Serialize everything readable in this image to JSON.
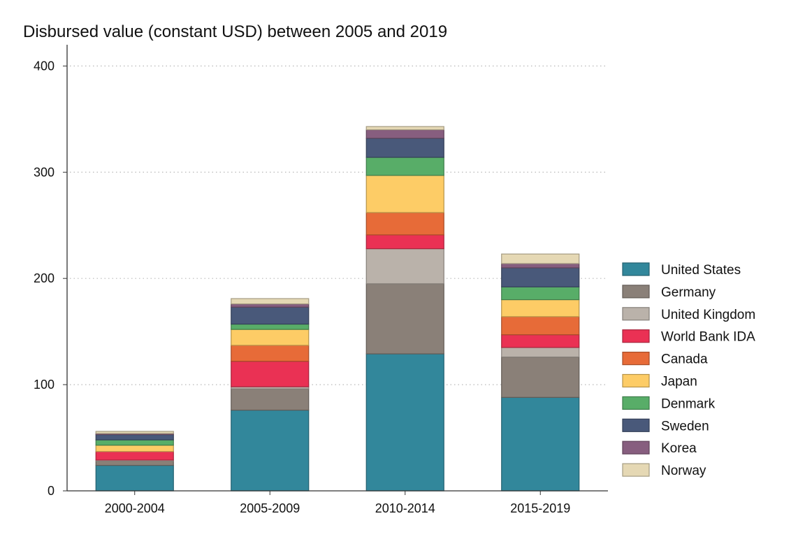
{
  "chart_data": {
    "type": "bar",
    "stacked": true,
    "title": "Disbursed value (constant USD) between 2005 and 2019",
    "xlabel": "",
    "ylabel": "",
    "ylim": [
      0,
      420
    ],
    "yticks": [
      0,
      100,
      200,
      300,
      400
    ],
    "grid": true,
    "legend_position": "right",
    "categories": [
      "2000-2004",
      "2005-2009",
      "2010-2014",
      "2015-2019"
    ],
    "series": [
      {
        "name": "United States",
        "color": "#32879b",
        "values": [
          24,
          76,
          129,
          88
        ]
      },
      {
        "name": "Germany",
        "color": "#8a8078",
        "values": [
          4,
          20,
          66,
          38
        ]
      },
      {
        "name": "United Kingdom",
        "color": "#bab2aa",
        "values": [
          1,
          2,
          33,
          9
        ]
      },
      {
        "name": "World Bank IDA",
        "color": "#ea3154",
        "values": [
          8,
          24,
          13,
          12
        ]
      },
      {
        "name": "Canada",
        "color": "#e76b38",
        "values": [
          0,
          15,
          21,
          17
        ]
      },
      {
        "name": "Japan",
        "color": "#fdcc66",
        "values": [
          6,
          15,
          35,
          16
        ]
      },
      {
        "name": "Denmark",
        "color": "#58ad68",
        "values": [
          5,
          5,
          17,
          12
        ]
      },
      {
        "name": "Sweden",
        "color": "#49597a",
        "values": [
          5,
          16,
          18,
          18
        ]
      },
      {
        "name": "Korea",
        "color": "#875e7f",
        "values": [
          1,
          3,
          8,
          4
        ]
      },
      {
        "name": "Norway",
        "color": "#e5d8b4",
        "values": [
          2,
          5,
          3,
          9
        ]
      }
    ]
  }
}
